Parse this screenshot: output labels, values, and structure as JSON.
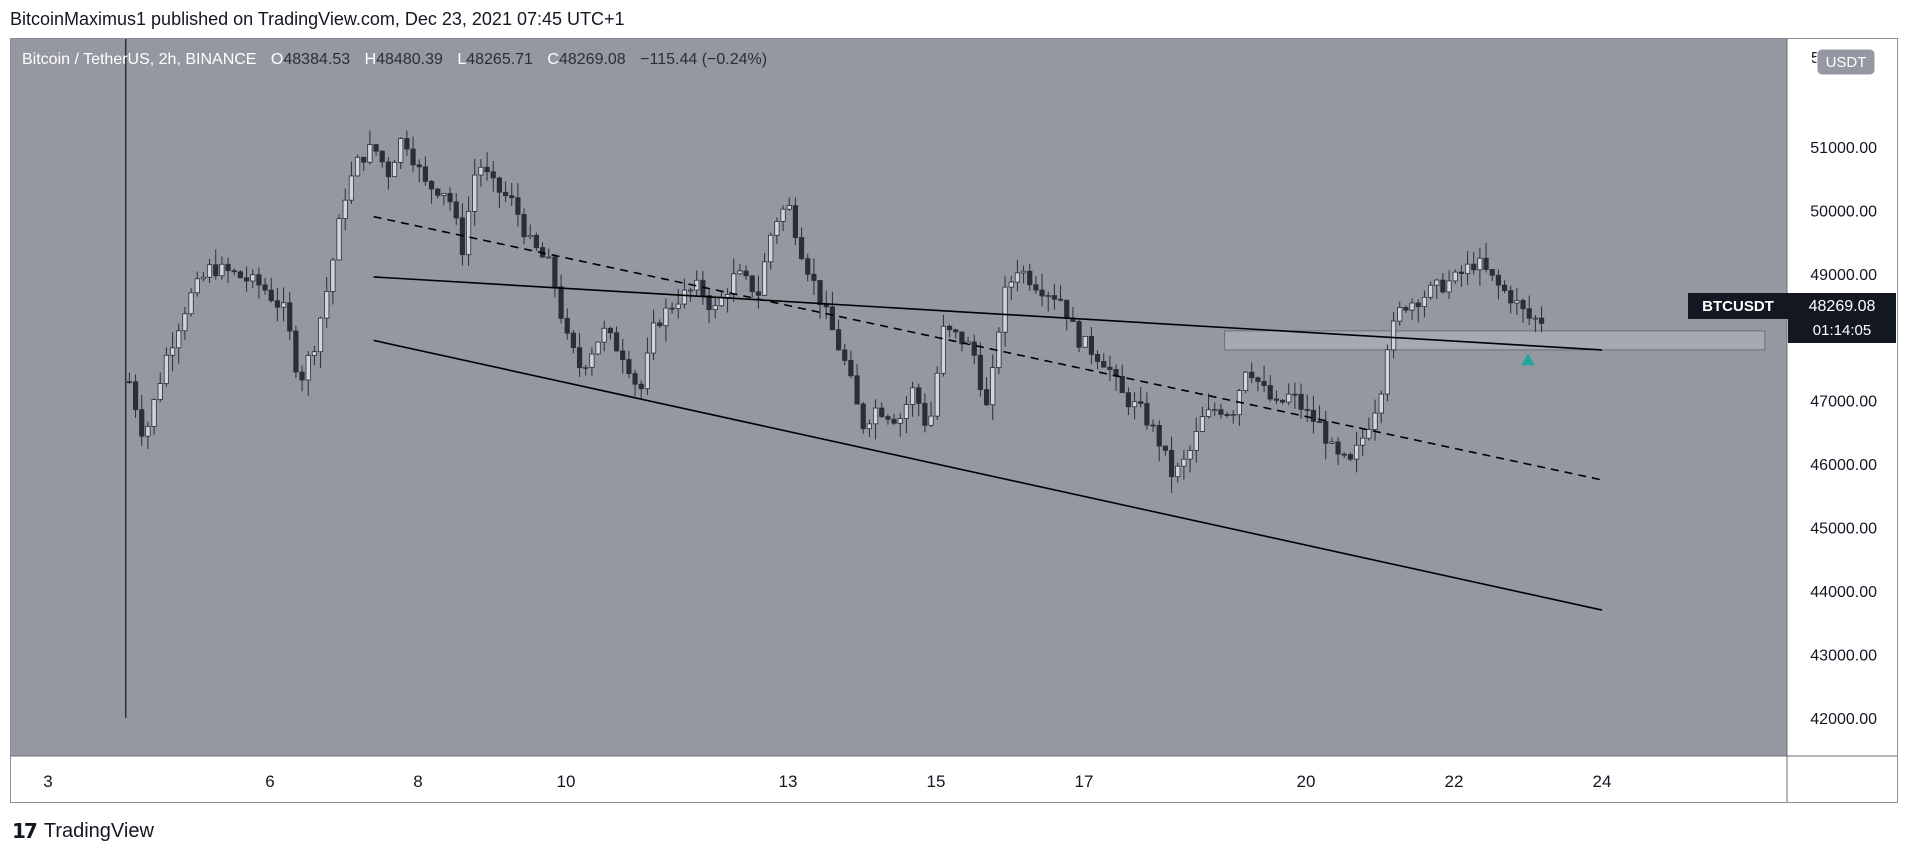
{
  "header": {
    "published_by": "BitcoinMaximus1 published on TradingView.com, Dec 23, 2021 07:45 UTC+1"
  },
  "legend": {
    "symbol": "Bitcoin / TetherUS, 2h, BINANCE",
    "o_label": "O",
    "o_value": "48384.53",
    "h_label": "H",
    "h_value": "48480.39",
    "l_label": "L",
    "l_value": "48265.71",
    "c_label": "C",
    "c_value": "48269.08",
    "change": "−115.44 (−0.24%)"
  },
  "currency_badge": "USDT",
  "price_tag": {
    "symbol": "BTCUSDT",
    "price": "48269.08",
    "countdown": "01:14:05"
  },
  "footer": {
    "brand": "TradingView",
    "logo_glyph": "17"
  },
  "colors": {
    "plot_bg": "#9598a1",
    "candle": "#2a2e39",
    "candle_body": "#d1d4dc",
    "line": "#000000",
    "zone": "#a9acb5",
    "tag_bg": "#131722",
    "marker": "#26a69a"
  },
  "chart_data": {
    "type": "candlestick",
    "symbol": "Bitcoin / TetherUS",
    "interval": "2h",
    "exchange": "BINANCE",
    "x_ticks": [
      "3",
      "6",
      "8",
      "10",
      "13",
      "15",
      "17",
      "20",
      "22",
      "24"
    ],
    "x_tick_days": [
      3,
      6,
      8,
      10,
      13,
      15,
      17,
      20,
      22,
      24
    ],
    "x_range_days": [
      2.5,
      26.5
    ],
    "y_ticks": [
      "51000.00",
      "50000.00",
      "49000.00",
      "48000.00",
      "47000.00",
      "46000.00",
      "45000.00",
      "44000.00",
      "43000.00",
      "42000.00"
    ],
    "y_top_label_partial": "5",
    "ylim": [
      41400,
      52700
    ],
    "lines": [
      {
        "name": "channel-upper",
        "style": "solid",
        "from": [
          7.4,
          48950
        ],
        "to": [
          24.0,
          47800
        ]
      },
      {
        "name": "channel-mid",
        "style": "dashed",
        "from": [
          7.4,
          49900
        ],
        "to": [
          24.0,
          45750
        ]
      },
      {
        "name": "channel-lower",
        "style": "solid",
        "from": [
          7.4,
          47950
        ],
        "to": [
          24.0,
          43700
        ]
      }
    ],
    "support_zone": {
      "day_from": 18.9,
      "day_to": 26.2,
      "low": 47800,
      "high": 48100
    },
    "marker": {
      "type": "up-arrow",
      "day": 23.0,
      "price": 47650
    },
    "price_path": [
      [
        4.0,
        44000
      ],
      [
        4.1,
        47300
      ],
      [
        4.3,
        46400
      ],
      [
        4.6,
        47700
      ],
      [
        4.9,
        48600
      ],
      [
        5.2,
        49100
      ],
      [
        5.5,
        49000
      ],
      [
        5.9,
        48800
      ],
      [
        6.2,
        48400
      ],
      [
        6.4,
        47300
      ],
      [
        6.6,
        47900
      ],
      [
        6.8,
        48900
      ],
      [
        7.0,
        50200
      ],
      [
        7.2,
        50800
      ],
      [
        7.4,
        51000
      ],
      [
        7.6,
        50600
      ],
      [
        7.8,
        51200
      ],
      [
        8.1,
        50400
      ],
      [
        8.4,
        50300
      ],
      [
        8.6,
        49400
      ],
      [
        8.8,
        50800
      ],
      [
        9.0,
        50400
      ],
      [
        9.3,
        50100
      ],
      [
        9.5,
        49500
      ],
      [
        9.8,
        49100
      ],
      [
        10.0,
        48000
      ],
      [
        10.2,
        47500
      ],
      [
        10.5,
        48100
      ],
      [
        10.8,
        47700
      ],
      [
        11.0,
        47100
      ],
      [
        11.2,
        48200
      ],
      [
        11.5,
        48600
      ],
      [
        11.8,
        48800
      ],
      [
        12.0,
        48400
      ],
      [
        12.3,
        49000
      ],
      [
        12.6,
        48700
      ],
      [
        12.8,
        49800
      ],
      [
        13.0,
        50100
      ],
      [
        13.2,
        49300
      ],
      [
        13.4,
        48700
      ],
      [
        13.6,
        48100
      ],
      [
        13.8,
        47500
      ],
      [
        14.0,
        46600
      ],
      [
        14.2,
        46900
      ],
      [
        14.5,
        46700
      ],
      [
        14.7,
        47200
      ],
      [
        14.9,
        46500
      ],
      [
        15.1,
        48100
      ],
      [
        15.3,
        48000
      ],
      [
        15.5,
        47800
      ],
      [
        15.7,
        46800
      ],
      [
        15.9,
        48600
      ],
      [
        16.1,
        49100
      ],
      [
        16.4,
        48800
      ],
      [
        16.7,
        48600
      ],
      [
        16.9,
        48000
      ],
      [
        17.1,
        47800
      ],
      [
        17.3,
        47600
      ],
      [
        17.5,
        47100
      ],
      [
        17.8,
        46800
      ],
      [
        18.0,
        46400
      ],
      [
        18.2,
        45800
      ],
      [
        18.4,
        46100
      ],
      [
        18.6,
        46700
      ],
      [
        18.8,
        46900
      ],
      [
        19.0,
        46800
      ],
      [
        19.2,
        47600
      ],
      [
        19.4,
        47200
      ],
      [
        19.6,
        46900
      ],
      [
        19.8,
        47100
      ],
      [
        20.0,
        46800
      ],
      [
        20.2,
        46600
      ],
      [
        20.4,
        46100
      ],
      [
        20.6,
        46000
      ],
      [
        20.8,
        46500
      ],
      [
        21.0,
        47100
      ],
      [
        21.1,
        47900
      ],
      [
        21.3,
        48500
      ],
      [
        21.5,
        48600
      ],
      [
        21.8,
        48800
      ],
      [
        22.0,
        48900
      ],
      [
        22.3,
        49200
      ],
      [
        22.6,
        48800
      ],
      [
        22.8,
        48600
      ],
      [
        23.0,
        48300
      ],
      [
        23.2,
        48269
      ]
    ]
  }
}
